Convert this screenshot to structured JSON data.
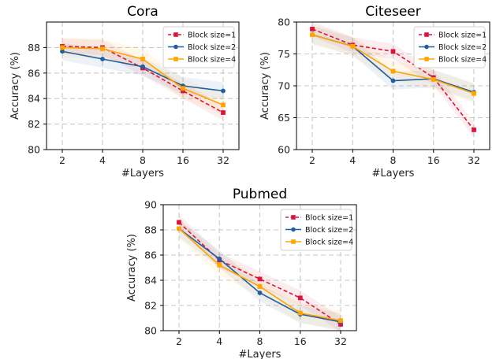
{
  "chart_data": [
    {
      "type": "line",
      "title": "Cora",
      "xlabel": "#Layers",
      "ylabel": "Accuracy (%)",
      "categories": [
        "2",
        "4",
        "8",
        "16",
        "32"
      ],
      "yticks": [
        "80",
        "82",
        "84",
        "86",
        "88"
      ],
      "ylim": [
        80,
        90
      ],
      "grid": true,
      "legend_position": "top-right",
      "series": [
        {
          "name": "Block size=1",
          "values": [
            88.1,
            88.0,
            86.4,
            84.6,
            82.9
          ],
          "color": "#dc143c",
          "marker": "square",
          "dashed": true
        },
        {
          "name": "Block size=2",
          "values": [
            87.7,
            87.1,
            86.5,
            85.0,
            84.6
          ],
          "color": "#1f5fa0",
          "marker": "circle",
          "dashed": false
        },
        {
          "name": "Block size=4",
          "values": [
            88.0,
            87.9,
            87.1,
            84.8,
            83.5
          ],
          "color": "#ffa500",
          "marker": "square",
          "dashed": false
        }
      ]
    },
    {
      "type": "line",
      "title": "Citeseer",
      "xlabel": "#Layers",
      "ylabel": "Accuracy (%)",
      "categories": [
        "2",
        "4",
        "8",
        "16",
        "32"
      ],
      "yticks": [
        "60",
        "65",
        "70",
        "75",
        "80"
      ],
      "ylim": [
        60,
        80
      ],
      "grid": true,
      "legend_position": "top-right",
      "series": [
        {
          "name": "Block size=1",
          "values": [
            78.9,
            76.4,
            75.4,
            71.3,
            63.1
          ],
          "color": "#dc143c",
          "marker": "square",
          "dashed": true
        },
        {
          "name": "Block size=2",
          "values": [
            78.0,
            76.2,
            70.8,
            71.1,
            69.0
          ],
          "color": "#1f5fa0",
          "marker": "circle",
          "dashed": false
        },
        {
          "name": "Block size=4",
          "values": [
            78.0,
            76.2,
            72.3,
            71.0,
            68.8
          ],
          "color": "#ffa500",
          "marker": "square",
          "dashed": false
        }
      ]
    },
    {
      "type": "line",
      "title": "Pubmed",
      "xlabel": "#Layers",
      "ylabel": "Accuracy (%)",
      "categories": [
        "2",
        "4",
        "8",
        "16",
        "32"
      ],
      "yticks": [
        "80",
        "82",
        "84",
        "86",
        "88",
        "90"
      ],
      "ylim": [
        80,
        90
      ],
      "grid": true,
      "legend_position": "top-right",
      "series": [
        {
          "name": "Block size=1",
          "values": [
            88.6,
            85.6,
            84.1,
            82.6,
            80.5
          ],
          "color": "#dc143c",
          "marker": "square",
          "dashed": true
        },
        {
          "name": "Block size=2",
          "values": [
            88.1,
            85.7,
            83.0,
            81.3,
            80.7
          ],
          "color": "#1f5fa0",
          "marker": "circle",
          "dashed": false
        },
        {
          "name": "Block size=4",
          "values": [
            88.1,
            85.2,
            83.5,
            81.4,
            80.8
          ],
          "color": "#ffa500",
          "marker": "square",
          "dashed": false
        }
      ]
    }
  ]
}
